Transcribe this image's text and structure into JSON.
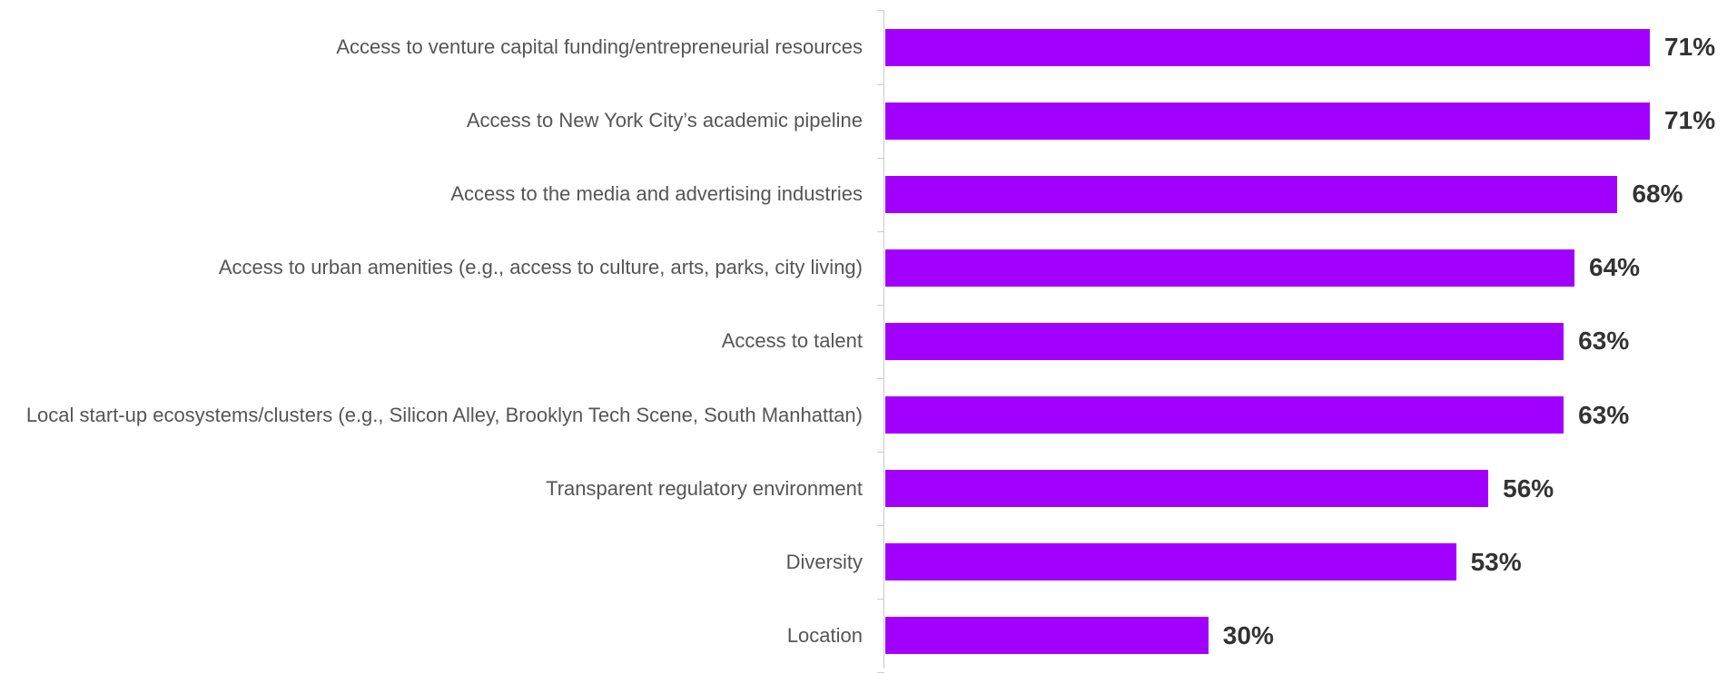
{
  "chart_data": {
    "type": "bar",
    "orientation": "horizontal",
    "categories": [
      "Access to venture capital funding/entrepreneurial resources",
      "Access to New York City’s academic pipeline",
      "Access to the media and advertising industries",
      "Access to urban amenities (e.g., access to culture, arts, parks, city living)",
      "Access to talent",
      "Local start-up ecosystems/clusters (e.g., Silicon Alley, Brooklyn Tech Scene, South Manhattan)",
      "Transparent regulatory environment",
      "Diversity",
      "Location"
    ],
    "values": [
      71,
      71,
      68,
      64,
      63,
      63,
      56,
      53,
      30
    ],
    "value_labels": [
      "71%",
      "71%",
      "68%",
      "64%",
      "63%",
      "63%",
      "56%",
      "53%",
      "30%"
    ],
    "color": "#a100ff"
  }
}
